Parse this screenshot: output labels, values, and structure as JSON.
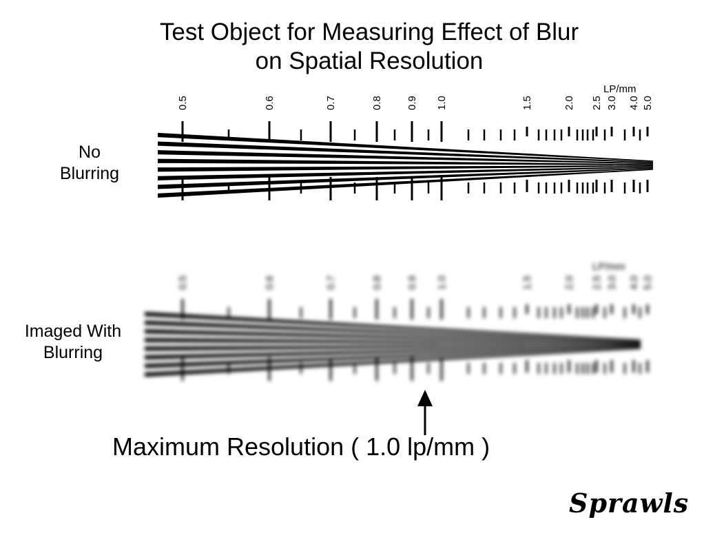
{
  "title": {
    "line1": "Test Object for Measuring Effect of Blur",
    "line2": "on Spatial Resolution"
  },
  "units_label": "LP/mm",
  "rows": {
    "sharp_label_line1": "No",
    "sharp_label_line2": "Blurring",
    "blurred_label_line1": "Imaged With",
    "blurred_label_line2": "Blurring"
  },
  "frequency_labels": [
    "0.5",
    "0.6",
    "0.7",
    "0.8",
    "0.9",
    "1.0",
    "1.5",
    "2.0",
    "2.5",
    "3.0",
    "4.0",
    "5.0"
  ],
  "caption": "Maximum Resolution ( 1.0 lp/mm )",
  "maximum_resolution_lp_per_mm": 1.0,
  "signature": "Sprawls",
  "colors": {
    "ink": "#000000",
    "background": "#ffffff"
  }
}
